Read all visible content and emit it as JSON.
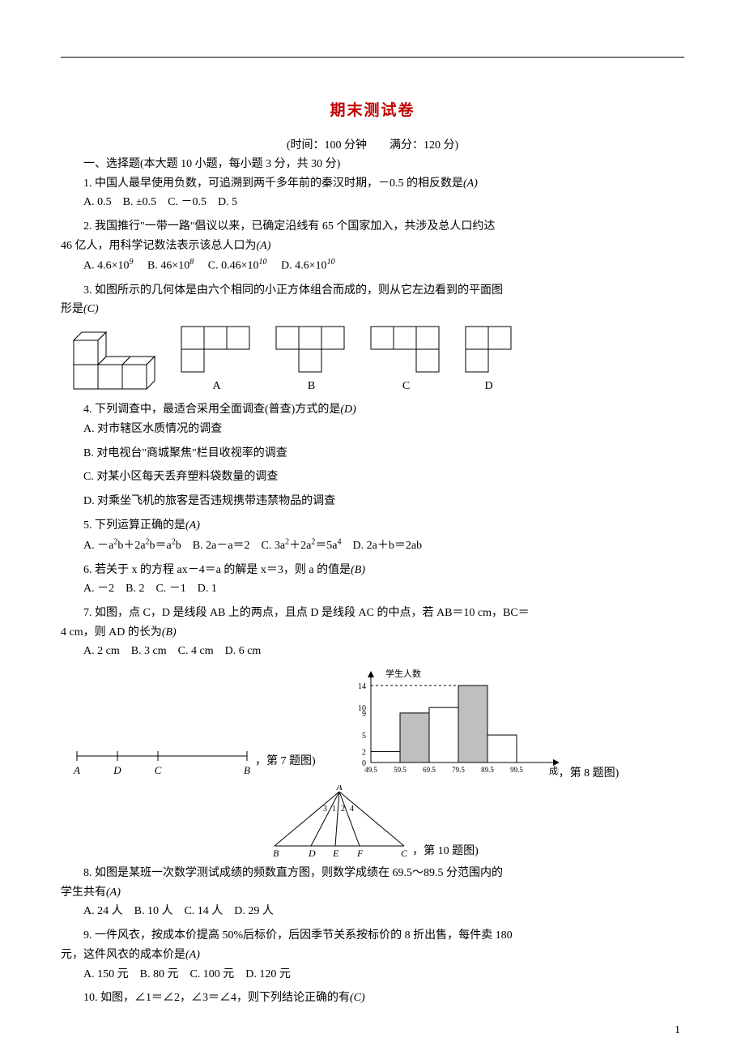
{
  "title": "期末测试卷",
  "timing": "(时间：100 分钟　　满分：120 分)",
  "section1": "一、选择题(本大题 10 小题，每小题 3 分，共 30 分)",
  "q1": {
    "text": "1. 中国人最早使用负数，可追溯到两千多年前的秦汉时期，－0.5 的相反数是",
    "ans": "(A)",
    "opts": "A. 0.5　B. ±0.5　C. －0.5　D. 5"
  },
  "q2": {
    "text1": "2. 我国推行\"一带一路\"倡议以来，已确定沿线有 65 个国家加入，共涉及总人口约达",
    "text2": "46 亿人，用科学记数法表示该总人口为",
    "ans": "(A)",
    "optA": "A",
    "optA_v": ". 4.6×10",
    "optA_e": "9",
    "optB": "B",
    "optB_v": ". 46×10",
    "optB_e": "8",
    "optC": "C",
    "optC_v": ". 0.46×10",
    "optC_e": "10",
    "optD": "D",
    "optD_v": ". 4.6×10",
    "optD_e": "10"
  },
  "q3": {
    "text1": "3. 如图所示的几何体是由六个相同的小正方体组合而成的，则从它左边看到的平面图",
    "text2": "形是",
    "ans": "(C)",
    "labels": {
      "A": "A",
      "B": "B",
      "C": "C",
      "D": "D"
    }
  },
  "q4": {
    "text": "4. 下列调查中，最适合采用全面调查(普查)方式的是",
    "ans": "(D)",
    "a": "A. 对市辖区水质情况的调查",
    "b": "B. 对电视台\"商城聚焦\"栏目收视率的调查",
    "c": "C. 对某小区每天丢弃塑料袋数量的调查",
    "d": "D. 对乘坐飞机的旅客是否违规携带违禁物品的调查"
  },
  "q5": {
    "text": "5. 下列运算正确的是",
    "ans": "(A)",
    "opts_html": true
  },
  "q6": {
    "text": "6. 若关于 x 的方程 ax－4＝a 的解是 x＝3，则 a 的值是",
    "ans": "(B)",
    "opts": "A. －2　B. 2　C. －1　D. 1"
  },
  "q7": {
    "text1": "7. 如图，点 C，D 是线段 AB 上的两点，且点 D 是线段 AC 的中点，若 AB＝10 cm，BC＝",
    "text2": "4 cm，则 AD 的长为",
    "ans": "(B)",
    "opts": "A. 2 cm　B. 3 cm　C. 4 cm　D. 6 cm",
    "fig_label": "，第 7 题图)",
    "line_labels": {
      "A": "A",
      "D": "D",
      "C": "C",
      "B": "B"
    }
  },
  "q8": {
    "chart": {
      "xlabel": "成绩",
      "ylabel": "学生人数",
      "x_ticks": [
        "49.5",
        "59.5",
        "69.5",
        "79.5",
        "89.5",
        "99.5"
      ],
      "y_ticks": [
        0,
        2,
        5,
        9,
        10,
        14
      ],
      "bars": [
        {
          "x": "49.5-59.5",
          "h": 2,
          "color": "#ffffff"
        },
        {
          "x": "59.5-69.5",
          "h": 9,
          "color": "#bfbfbf"
        },
        {
          "x": "69.5-79.5",
          "h": 10,
          "color": "#ffffff"
        },
        {
          "x": "79.5-89.5",
          "h": 14,
          "color": "#bfbfbf"
        },
        {
          "x": "89.5-99.5",
          "h": 5,
          "color": "#ffffff"
        }
      ]
    },
    "fig_label": "，第 8 题图)",
    "text1": "8. 如图是某班一次数学测试成绩的频数直方图，则数学成绩在 69.5～89.5 分范围内的",
    "text2": "学生共有",
    "ans": "(A)",
    "opts": "A. 24 人　B. 10 人　C. 14 人　D. 29 人"
  },
  "q9": {
    "text1": "9. 一件风衣，按成本价提高 50%后标价，后因季节关系按标价的 8 折出售，每件卖 180",
    "text2": "元，这件风衣的成本价是",
    "ans": "(A)",
    "opts": "A. 150 元　B. 80 元　C. 100 元　D. 120 元"
  },
  "q10": {
    "text": "10. 如图，∠1＝∠2，∠3＝∠4，则下列结论正确的有",
    "ans": "(C)",
    "fig_label": "，第 10 题图)",
    "labels": {
      "A": "A",
      "B": "B",
      "D": "D",
      "E": "E",
      "F": "F",
      "C": "C",
      "n1": "1",
      "n2": "2",
      "n3": "3",
      "n4": "4"
    }
  },
  "page_number": "1"
}
